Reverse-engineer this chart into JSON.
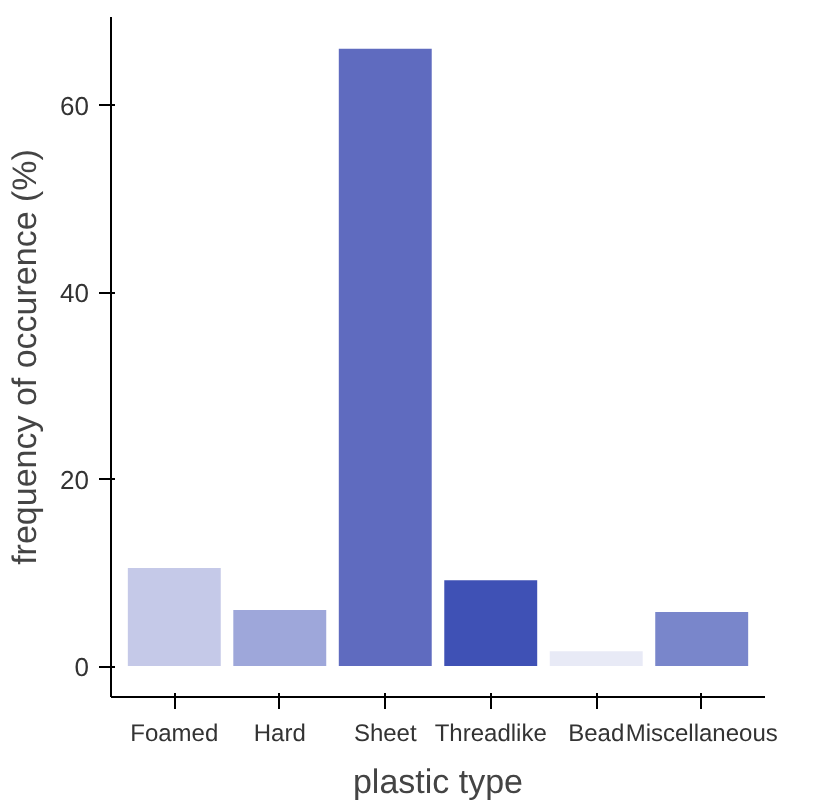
{
  "chart_data": {
    "type": "bar",
    "xlabel": "plastic type",
    "ylabel": "frequency of occurence (%)",
    "categories": [
      "Foamed",
      "Hard",
      "Sheet",
      "Threadlike",
      "Bead",
      "Miscellaneous"
    ],
    "values": [
      10.7,
      6.2,
      66.2,
      9.4,
      1.8,
      6.0
    ],
    "colors": [
      "#c5c9e8",
      "#9ea7da",
      "#5f6bbf",
      "#3f51b5",
      "#e8eaf6",
      "#7986cb"
    ],
    "ylim": [
      -3.2,
      69.5
    ],
    "yticks": [
      0,
      20,
      40,
      60
    ],
    "grid": false
  }
}
